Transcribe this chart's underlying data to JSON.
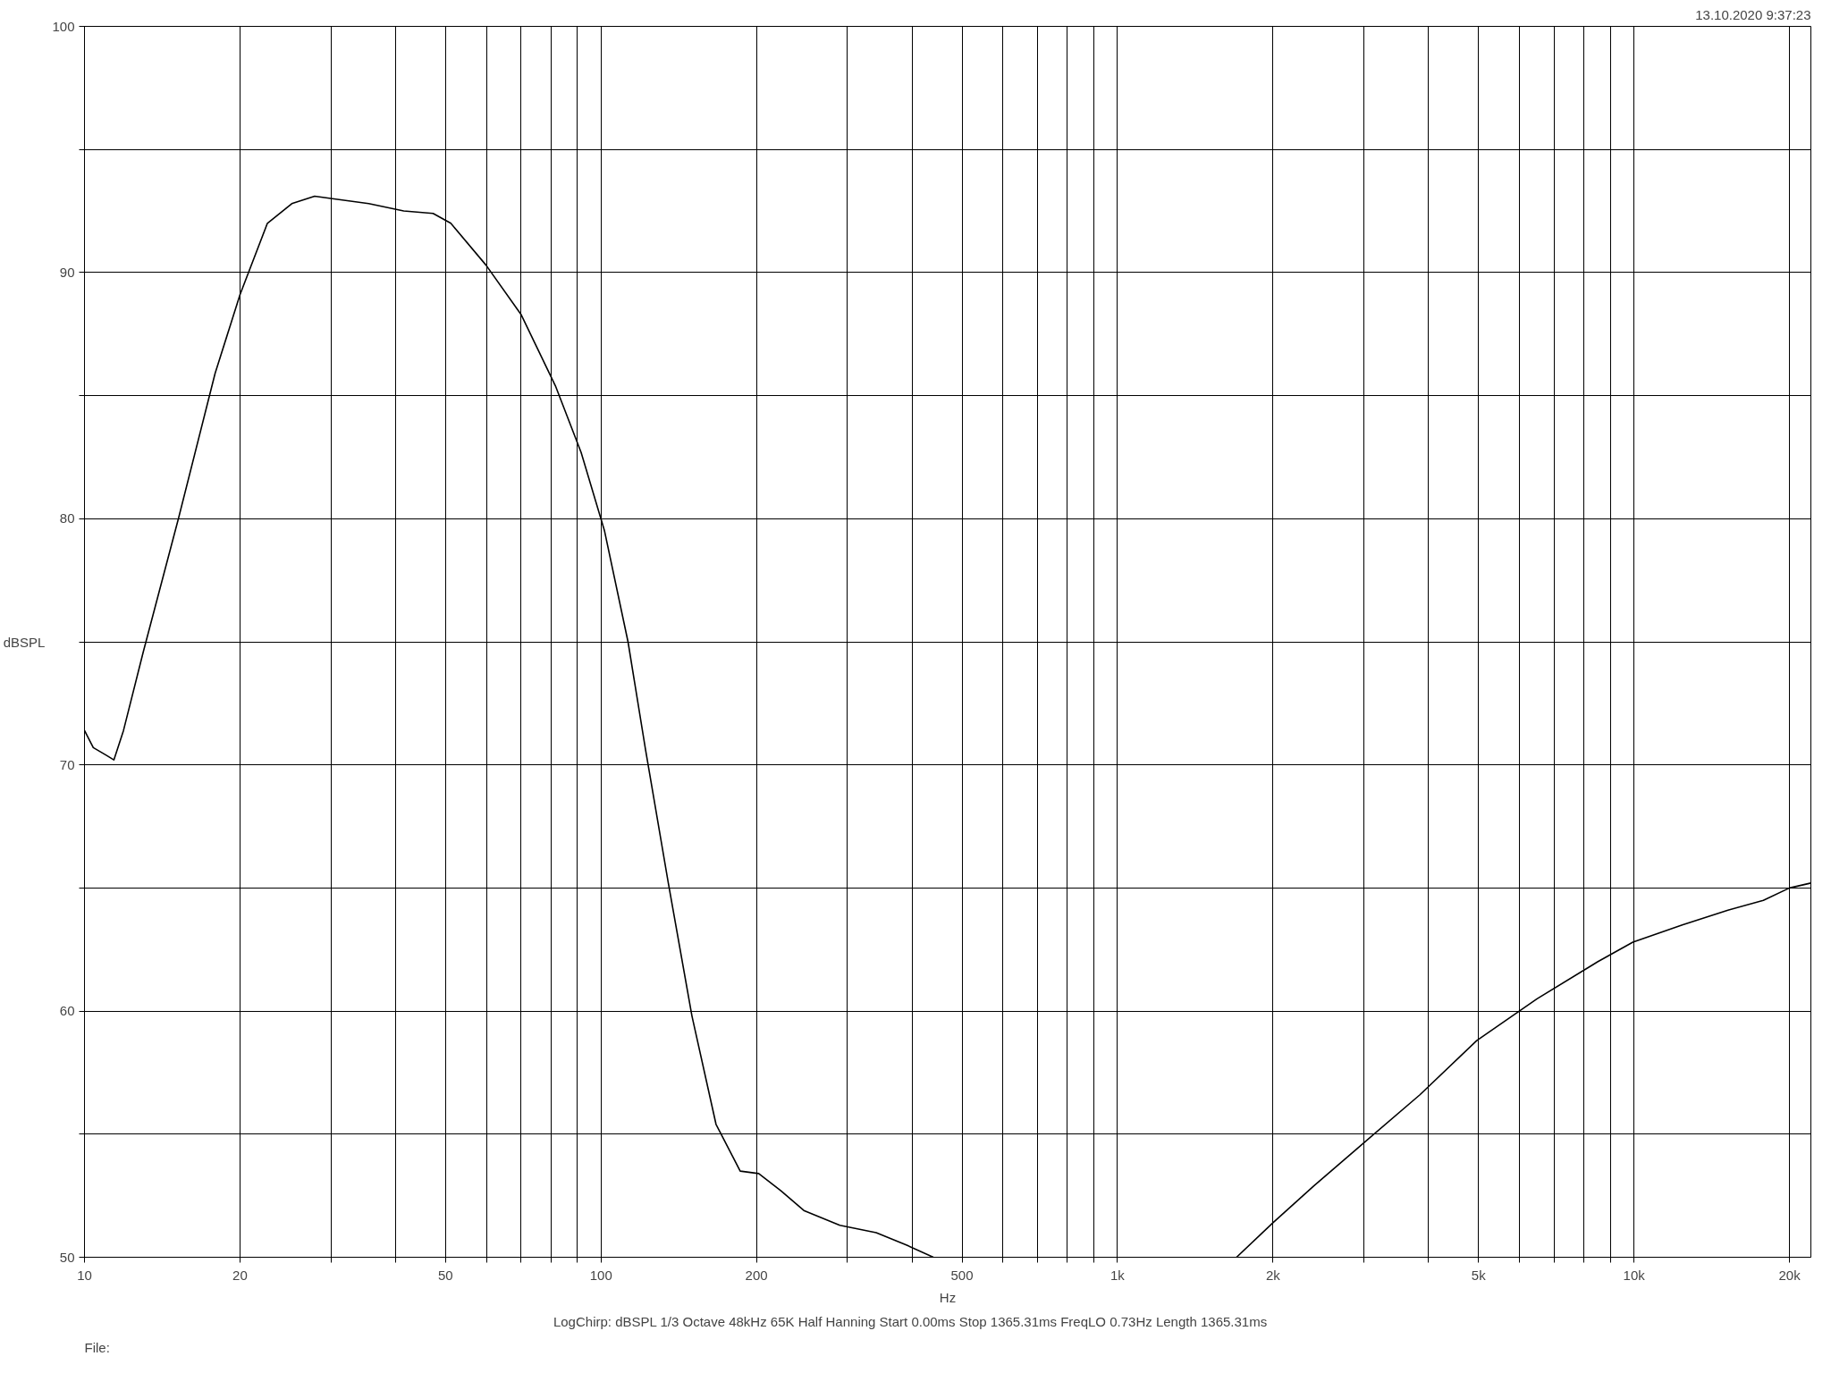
{
  "chart_data": {
    "type": "line",
    "xlabel": "Hz",
    "ylabel": "dBSPL",
    "annotations": [
      "13.10.2020 9:37:23",
      "LogChirp:  dBSPL   1/3 Octave   48kHz   65K   Half Hanning   Start 0.00ms    Stop 1365.31ms    FreqLO 0.73Hz    Length 1365.31ms",
      "File:"
    ],
    "log": "x",
    "grid": true,
    "xlim": [
      10,
      22000
    ],
    "ylim": [
      50,
      100
    ],
    "xticks": [
      10,
      20,
      {
        "value": 30,
        "label": null
      },
      {
        "value": 40,
        "label": null
      },
      50,
      {
        "value": 60,
        "label": null
      },
      {
        "value": 70,
        "label": null
      },
      {
        "value": 80,
        "label": null
      },
      {
        "value": 90,
        "label": null
      },
      100,
      200,
      {
        "value": 300,
        "label": null
      },
      {
        "value": 400,
        "label": null
      },
      500,
      {
        "value": 600,
        "label": null
      },
      {
        "value": 700,
        "label": null
      },
      {
        "value": 800,
        "label": null
      },
      {
        "value": 900,
        "label": null
      },
      {
        "value": 1000,
        "label": "1k"
      },
      {
        "value": 2000,
        "label": "2k"
      },
      {
        "value": 3000,
        "label": null
      },
      {
        "value": 4000,
        "label": null
      },
      {
        "value": 5000,
        "label": "5k"
      },
      {
        "value": 6000,
        "label": null
      },
      {
        "value": 7000,
        "label": null
      },
      {
        "value": 8000,
        "label": null
      },
      {
        "value": 9000,
        "label": null
      },
      {
        "value": 10000,
        "label": "10k"
      },
      {
        "value": 20000,
        "label": "20k"
      }
    ],
    "yticks": [
      50,
      {
        "value": 55,
        "label": null
      },
      60,
      {
        "value": 65,
        "label": null
      },
      70,
      {
        "value": 75,
        "label": null
      },
      80,
      {
        "value": 85,
        "label": null
      },
      90,
      {
        "value": 95,
        "label": null
      },
      100
    ],
    "series": [
      {
        "color": "#000000",
        "x": [
          10,
          10.4,
          11.0,
          11.4,
          11.9,
          13.0,
          15.2,
          17.9,
          20,
          22.6,
          25.2,
          27.9,
          30.2,
          35.5,
          41.5,
          47.3,
          51.2,
          59.9,
          70,
          81.6,
          91.5,
          101.6,
          112.8,
          122,
          135,
          150,
          167,
          186,
          202,
          223,
          247,
          290,
          341,
          390,
          440,
          1000,
          1700,
          2000,
          2400,
          2980,
          3850,
          4960,
          6490,
          8500,
          9950,
          12400,
          15200,
          17800,
          20000,
          22000
        ],
        "values": [
          71.4,
          70.7,
          70.4,
          70.2,
          71.4,
          74.6,
          80.0,
          85.9,
          89.1,
          92.0,
          92.8,
          93.1,
          93.0,
          92.8,
          92.5,
          92.4,
          92.0,
          90.3,
          88.3,
          85.4,
          82.7,
          79.5,
          75.0,
          70.6,
          65.2,
          59.8,
          55.4,
          53.5,
          53.4,
          52.7,
          51.9,
          51.3,
          51.0,
          50.5,
          50.0,
          null,
          50.0,
          51.4,
          52.9,
          54.6,
          56.6,
          58.8,
          60.5,
          62.0,
          62.8,
          63.5,
          64.1,
          64.5,
          65.0,
          65.2
        ]
      }
    ]
  }
}
